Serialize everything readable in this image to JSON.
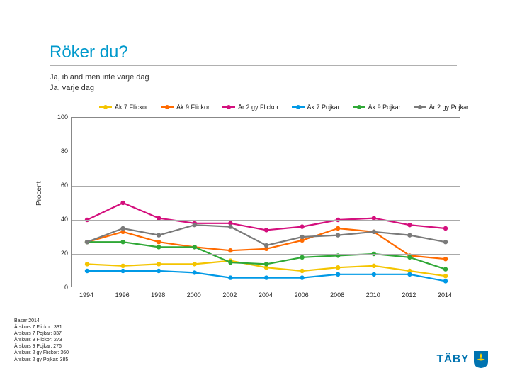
{
  "title": "Röker du?",
  "subtitle_lines": [
    "Ja, ibland men inte varje dag",
    "Ja, varje dag"
  ],
  "y_axis_label": "Procent",
  "chart": {
    "type": "line",
    "ylim": [
      0,
      100
    ],
    "ytick_step": 20,
    "xlim": [
      1994,
      2014
    ],
    "xtick_step": 2,
    "background_color": "#ffffff",
    "grid_color": "#aaaaaa",
    "border_color": "#888888",
    "line_width": 2.2,
    "marker_size": 3.2,
    "title_fontsize": 24,
    "title_color": "#0099cc",
    "label_fontsize": 10,
    "tick_fontsize": 9,
    "legend_fontsize": 9,
    "years": [
      1994,
      1996,
      1998,
      2000,
      2002,
      2004,
      2006,
      2008,
      2010,
      2012,
      2014
    ],
    "series": [
      {
        "name": "Åk 7 Flickor",
        "color": "#f4c400",
        "values": [
          14,
          13,
          14,
          14,
          16,
          12,
          10,
          12,
          13,
          10,
          7
        ]
      },
      {
        "name": "Åk 9 Flickor",
        "color": "#ff6a00",
        "values": [
          27,
          33,
          27,
          24,
          22,
          23,
          28,
          35,
          33,
          19,
          17
        ]
      },
      {
        "name": "År 2 gy Flickor",
        "color": "#d40f7d",
        "values": [
          40,
          50,
          41,
          38,
          38,
          34,
          36,
          40,
          41,
          37,
          35
        ]
      },
      {
        "name": "Åk 7 Pojkar",
        "color": "#0099e6",
        "values": [
          10,
          10,
          10,
          9,
          6,
          6,
          6,
          8,
          8,
          8,
          4
        ]
      },
      {
        "name": "Åk 9 Pojkar",
        "color": "#2fa836",
        "values": [
          27,
          27,
          24,
          24,
          15,
          14,
          18,
          19,
          20,
          18,
          11
        ]
      },
      {
        "name": "År 2 gy Pojkar",
        "color": "#7a7a7a",
        "values": [
          27,
          35,
          31,
          37,
          36,
          25,
          30,
          31,
          33,
          31,
          27
        ]
      }
    ]
  },
  "baser": {
    "heading": "Baser 2014",
    "rows": [
      "Årskurs 7 Flickor: 331",
      "Årskurs 7 Pojkar: 337",
      "Årskurs 9 Flickor: 273",
      "Årskurs 9 Pojkar: 276",
      "Årskurs 2 gy Flickor: 360",
      "Årskurs 2 gy Pojkar: 385"
    ]
  },
  "logo": {
    "text": "TÄBY",
    "color": "#0073b0",
    "shield_bg": "#0073b0",
    "shield_accent": "#ffd200"
  }
}
